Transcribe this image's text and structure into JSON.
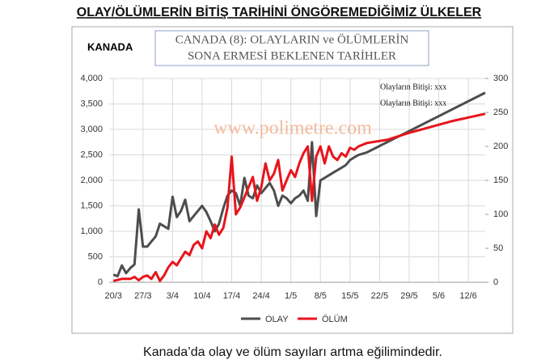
{
  "header": {
    "title": "OLAY/ÖLÜMLERİN BİTİŞ TARİHİNİ ÖNGÖREMEDİĞİMİZ ÜLKELER"
  },
  "chart_data": {
    "type": "line",
    "country_label": "KANADA",
    "title_lines": [
      "CANADA (8): OLAYLARIN  ve ÖLÜMLERİN",
      "SONA ERMESİ BEKLENEN TARİHLER"
    ],
    "watermark": "www.polimetre.com",
    "annotations": [
      "Olayların Bitişi: xxx",
      "Olayların Bitişi: xxx"
    ],
    "xlim": [
      -1,
      88
    ],
    "xticks": [
      {
        "value": 0,
        "label": "20/3"
      },
      {
        "value": 7,
        "label": "27/3"
      },
      {
        "value": 14,
        "label": "3/4"
      },
      {
        "value": 21,
        "label": "10/4"
      },
      {
        "value": 28,
        "label": "17/4"
      },
      {
        "value": 35,
        "label": "24/4"
      },
      {
        "value": 42,
        "label": "1/5"
      },
      {
        "value": 49,
        "label": "8/5"
      },
      {
        "value": 56,
        "label": "15/5"
      },
      {
        "value": 63,
        "label": "22/5"
      },
      {
        "value": 70,
        "label": "29/5"
      },
      {
        "value": 77,
        "label": "5/6"
      },
      {
        "value": 84,
        "label": "12/6"
      }
    ],
    "ylim": [
      0,
      4000
    ],
    "yticks": [
      0,
      {
        "value": 500,
        "label": "500"
      },
      {
        "value": 1000,
        "label": "1,000"
      },
      {
        "value": 1500,
        "label": "1,500"
      },
      {
        "value": 2000,
        "label": "2,000"
      },
      {
        "value": 2500,
        "label": "2,500"
      },
      {
        "value": 3000,
        "label": "3,000"
      },
      {
        "value": 3500,
        "label": "3,500"
      },
      {
        "value": 4000,
        "label": "4,000"
      }
    ],
    "y2lim": [
      0,
      300
    ],
    "y2ticks": [
      0,
      50,
      100,
      150,
      200,
      250,
      300
    ],
    "grid": true,
    "series": [
      {
        "name": "OLAY",
        "color": "#4d4d4d",
        "x": [
          0,
          1,
          2,
          3,
          4,
          5,
          6,
          7,
          8,
          9,
          10,
          11,
          12,
          13,
          14,
          15,
          16,
          17,
          18,
          19,
          20,
          21,
          22,
          23,
          24,
          25,
          26,
          27,
          28,
          29,
          30,
          31,
          32,
          33,
          34,
          35,
          36,
          37,
          38,
          39,
          40,
          41,
          42,
          43,
          44,
          45,
          46,
          47,
          48,
          49,
          50,
          51,
          52,
          53,
          54,
          55,
          56,
          57,
          58,
          60,
          88
        ],
        "values": [
          150,
          120,
          330,
          180,
          280,
          350,
          1430,
          700,
          700,
          800,
          900,
          1150,
          1100,
          1050,
          1680,
          1280,
          1400,
          1620,
          1200,
          1300,
          1400,
          1500,
          1380,
          1200,
          1000,
          1150,
          1450,
          1700,
          1800,
          1750,
          1500,
          2050,
          1700,
          1650,
          1900,
          1750,
          1850,
          1950,
          1800,
          1500,
          1700,
          1650,
          1550,
          1650,
          1700,
          1800,
          1600,
          2750,
          1300,
          2000,
          2050,
          2100,
          2150,
          2200,
          2250,
          2300,
          2400,
          2450,
          2500,
          2550,
          3720
        ]
      },
      {
        "name": "ÖLÜM",
        "color": "#e8141c",
        "axis": "y2",
        "x": [
          0,
          2,
          4,
          5,
          6,
          7,
          8,
          9,
          10,
          11,
          12,
          13,
          14,
          15,
          16,
          17,
          18,
          19,
          20,
          21,
          22,
          23,
          24,
          25,
          26,
          27,
          28,
          29,
          30,
          31,
          32,
          33,
          34,
          35,
          36,
          37,
          38,
          39,
          40,
          41,
          42,
          43,
          44,
          45,
          46,
          47,
          48,
          49,
          50,
          51,
          52,
          53,
          54,
          55,
          56,
          57,
          58,
          60,
          65,
          70,
          80,
          88
        ],
        "values": [
          2,
          5,
          5,
          8,
          3,
          8,
          10,
          5,
          15,
          2,
          10,
          22,
          30,
          25,
          35,
          45,
          40,
          55,
          60,
          50,
          75,
          65,
          85,
          70,
          80,
          110,
          185,
          100,
          110,
          125,
          140,
          155,
          120,
          140,
          175,
          150,
          160,
          180,
          135,
          150,
          165,
          155,
          175,
          190,
          200,
          120,
          185,
          200,
          175,
          200,
          185,
          180,
          190,
          185,
          198,
          195,
          200,
          205,
          210,
          220,
          237,
          248
        ]
      }
    ],
    "caption": "Kanada’da olay ve ölüm sayıları artma eğilimindedir."
  }
}
